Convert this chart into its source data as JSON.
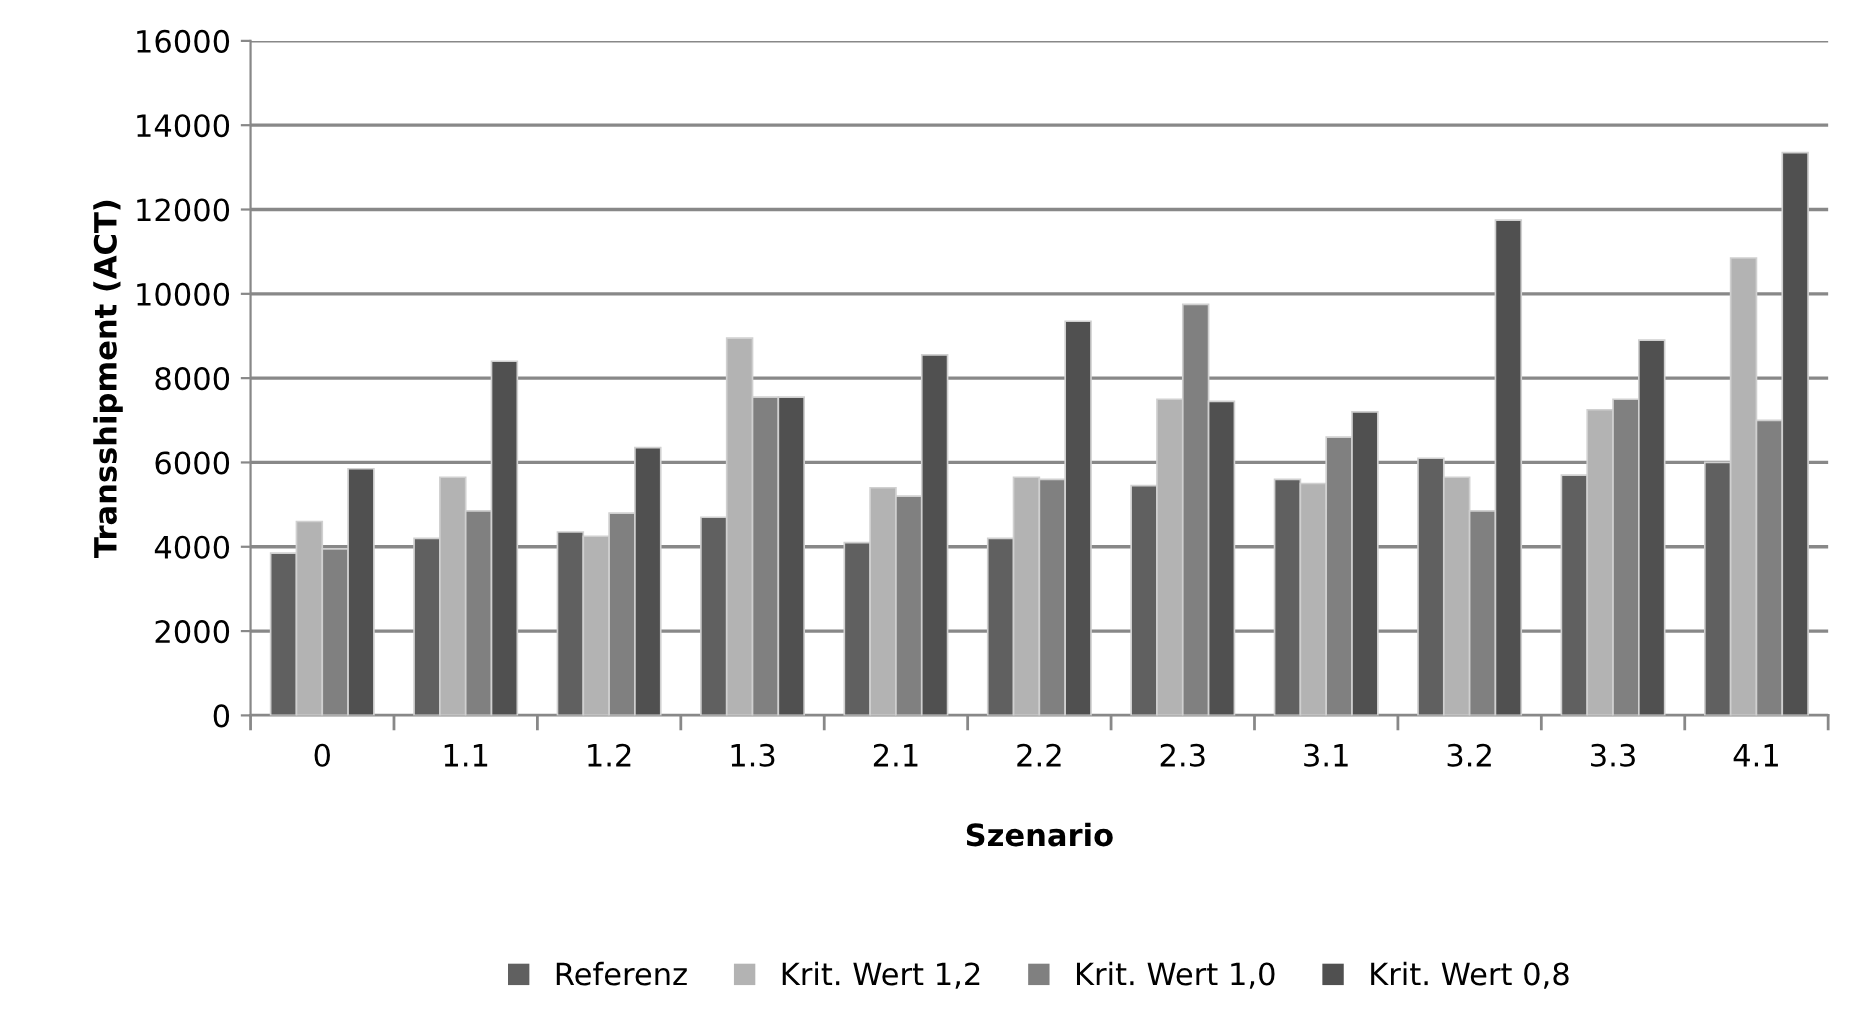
{
  "chart_data": {
    "type": "bar",
    "xlabel": "Szenario",
    "ylabel": "Transshipment (ACT)",
    "categories": [
      "0",
      "1.1",
      "1.2",
      "1.3",
      "2.1",
      "2.2",
      "2.3",
      "3.1",
      "3.2",
      "3.3",
      "4.1"
    ],
    "series": [
      {
        "name": "Referenz",
        "color": "#606060",
        "values": [
          3850,
          4200,
          4350,
          4700,
          4100,
          4200,
          5450,
          5600,
          6100,
          5700,
          6000
        ]
      },
      {
        "name": "Krit. Wert 1,2",
        "color": "#b3b3b3",
        "values": [
          4600,
          5650,
          4250,
          8950,
          5400,
          5650,
          7500,
          5500,
          5650,
          7250,
          10850
        ]
      },
      {
        "name": "Krit. Wert 1,0",
        "color": "#808080",
        "values": [
          3950,
          4850,
          4800,
          7550,
          5200,
          5600,
          9750,
          6600,
          4850,
          7500,
          7000
        ]
      },
      {
        "name": "Krit. Wert 0,8",
        "color": "#505050",
        "values": [
          5850,
          8400,
          6350,
          7550,
          8550,
          9350,
          7450,
          7200,
          11750,
          8900,
          13350
        ]
      }
    ],
    "ylim": [
      0,
      16000
    ],
    "yticks": [
      0,
      2000,
      4000,
      6000,
      8000,
      10000,
      12000,
      14000,
      16000
    ],
    "grid": "y",
    "legend": "bottom"
  }
}
